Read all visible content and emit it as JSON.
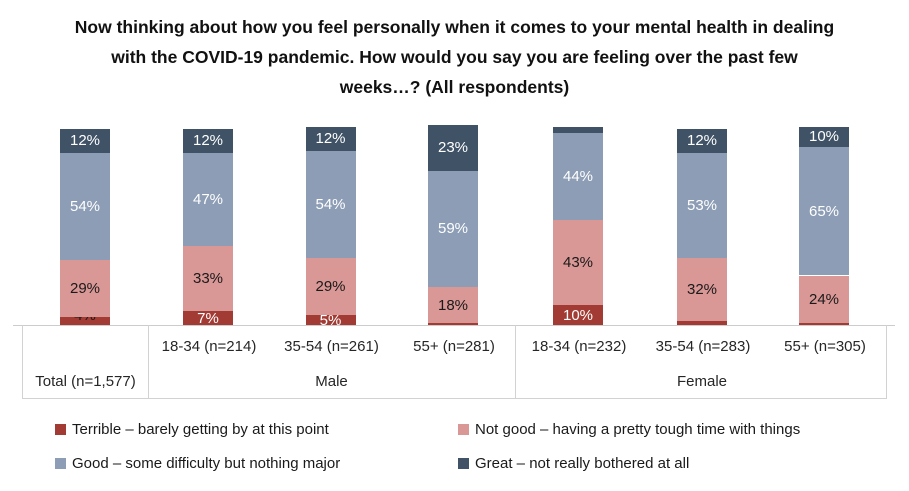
{
  "title": "Now thinking about how you feel personally when it comes to your mental health in dealing with the COVID-19 pandemic. How would you say you are feeling over the past few weeks…? (All respondents)",
  "colors": {
    "terrible": "#a23b33",
    "not_good": "#d99795",
    "good": "#8c9db5",
    "great": "#3f5266",
    "label_dark": "#1a1a1a",
    "label_light": "#ffffff",
    "axis_border": "#d2d2d2"
  },
  "chart_data": {
    "type": "bar",
    "subtype": "stacked-percent",
    "ylim": [
      0,
      100
    ],
    "legend_position": "bottom",
    "series": [
      {
        "key": "terrible",
        "name": "Terrible – barely getting by at this point",
        "color": "#a23b33"
      },
      {
        "key": "not_good",
        "name": "Not good – having a pretty tough time with things",
        "color": "#d99795"
      },
      {
        "key": "good",
        "name": "Good – some difficulty but nothing major",
        "color": "#8c9db5"
      },
      {
        "key": "great",
        "name": "Great – not really bothered at all",
        "color": "#3f5266"
      }
    ],
    "groups": [
      {
        "label": "Total (n=1,577)",
        "bars": [
          {
            "axis_label": null,
            "values": [
              4,
              29,
              54,
              12
            ],
            "value_labels": [
              "4%",
              "29%",
              "54%",
              "12%"
            ]
          }
        ]
      },
      {
        "label": "Male",
        "bars": [
          {
            "axis_label": "18-34 (n=214)",
            "values": [
              7,
              33,
              47,
              12
            ],
            "value_labels": [
              "7%",
              "33%",
              "47%",
              "12%"
            ]
          },
          {
            "axis_label": "35-54 (n=261)",
            "values": [
              5,
              29,
              54,
              12
            ],
            "value_labels": [
              "5%",
              "29%",
              "54%",
              "12%"
            ]
          },
          {
            "axis_label": "55+ (n=281)",
            "values": [
              1,
              18,
              59,
              23
            ],
            "value_labels": [
              null,
              "18%",
              "59%",
              "23%"
            ]
          }
        ]
      },
      {
        "label": "Female",
        "bars": [
          {
            "axis_label": "18-34 (n=232)",
            "values": [
              10,
              43,
              44,
              3
            ],
            "value_labels": [
              "10%",
              "43%",
              "44%",
              null
            ]
          },
          {
            "axis_label": "35-54 (n=283)",
            "values": [
              2,
              32,
              53,
              12
            ],
            "value_labels": [
              null,
              "32%",
              "53%",
              "12%"
            ]
          },
          {
            "axis_label": "55+ (n=305)",
            "values": [
              1,
              24,
              65,
              10
            ],
            "value_labels": [
              null,
              "24%",
              "65%",
              "10%"
            ]
          }
        ]
      }
    ]
  }
}
